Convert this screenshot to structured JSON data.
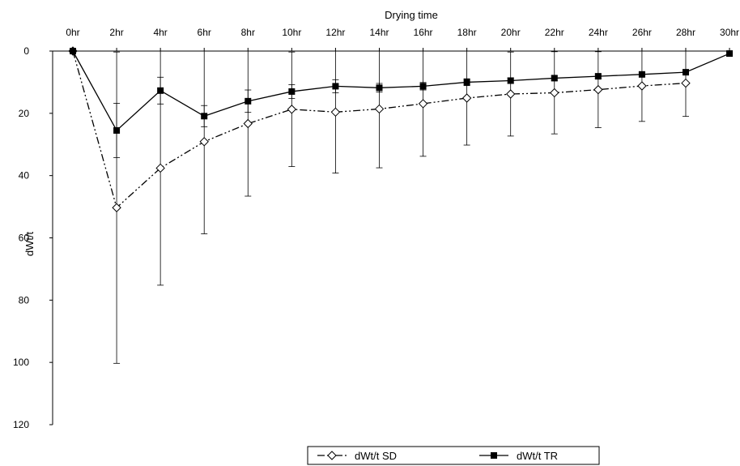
{
  "chart_data": {
    "type": "line",
    "title": "",
    "xlabel": "Drying time",
    "ylabel": "dWt/t",
    "categories": [
      "0hr",
      "2hr",
      "4hr",
      "6hr",
      "8hr",
      "10hr",
      "12hr",
      "14hr",
      "16hr",
      "18hr",
      "20hr",
      "22hr",
      "24hr",
      "26hr",
      "28hr",
      "30hr"
    ],
    "ylim": [
      0,
      120
    ],
    "yticks": [
      0,
      20,
      40,
      60,
      80,
      100,
      120
    ],
    "y_inverted": true,
    "x_axis_position": "top",
    "grid": false,
    "legend_position": "bottom",
    "series": [
      {
        "name": "dWt/t SD",
        "marker": "open-diamond",
        "line_style": "dash-dot-dot",
        "color": "#000000",
        "values": [
          0,
          50.3,
          37.6,
          29.1,
          23.3,
          18.7,
          19.6,
          18.6,
          16.9,
          15.1,
          13.8,
          13.4,
          12.4,
          11.2,
          10.3,
          null
        ],
        "error": [
          0,
          50,
          37.6,
          29.6,
          23.3,
          18.4,
          19.6,
          18.9,
          16.9,
          15.1,
          13.5,
          13.2,
          12.2,
          11.4,
          10.7,
          null
        ]
      },
      {
        "name": "dWt/t TR",
        "marker": "filled-square",
        "line_style": "solid",
        "color": "#000000",
        "values": [
          0,
          25.5,
          12.7,
          20.9,
          16.1,
          13.0,
          11.3,
          11.8,
          11.3,
          10.0,
          9.5,
          8.7,
          8.1,
          7.5,
          6.8,
          0.8
        ],
        "error": [
          0,
          8.7,
          4.3,
          3.4,
          3.6,
          2.2,
          2.1,
          1.4,
          1.2,
          1.1,
          0.9,
          0.7,
          0.6,
          0.6,
          0.6,
          0
        ]
      }
    ]
  }
}
